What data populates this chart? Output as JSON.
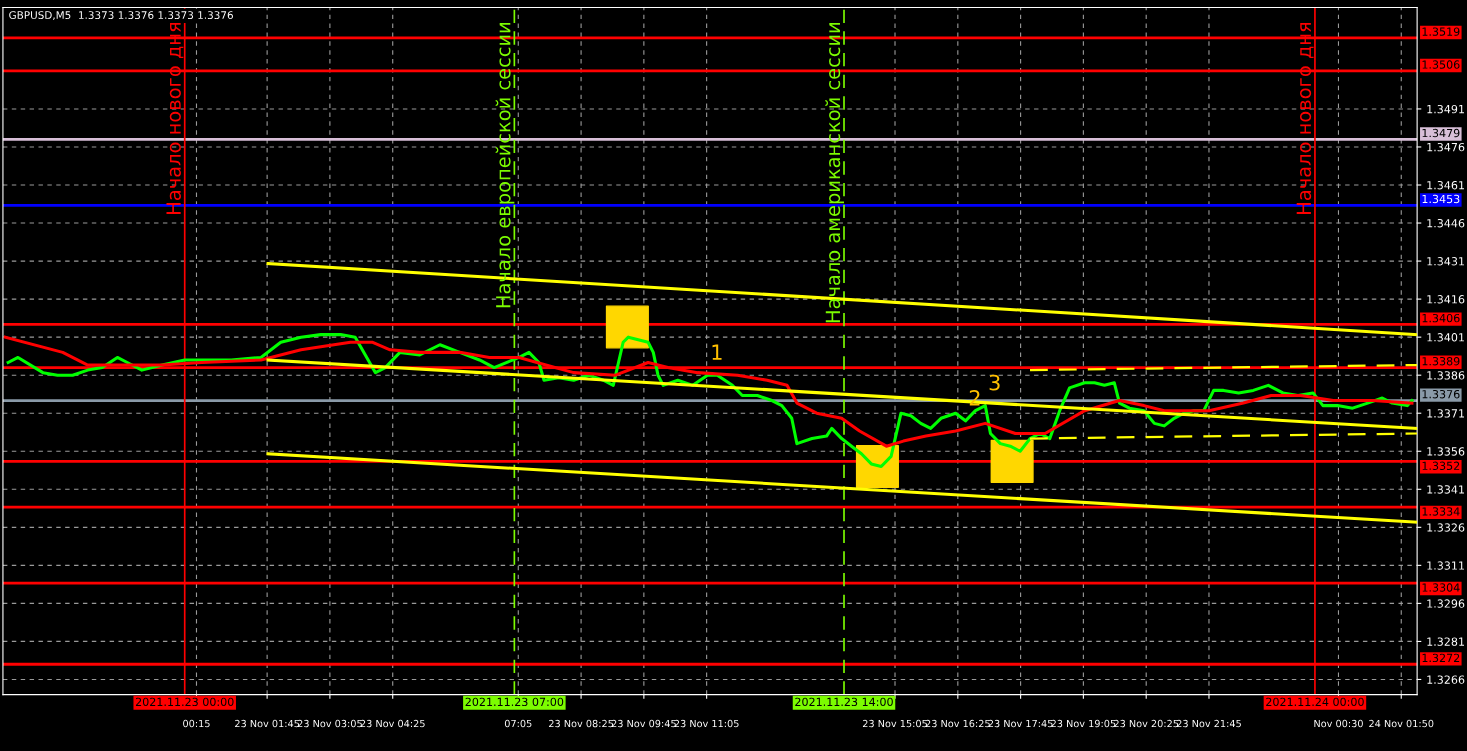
{
  "chart_data": {
    "type": "line",
    "title": "GBPUSD,M5  1.3373 1.3376 1.3373 1.3376",
    "xlim": [
      -3.86,
      26.17
    ],
    "ylim": [
      1.326,
      1.3531
    ],
    "xticks": [
      {
        "value": 0.25,
        "label": "00:15"
      },
      {
        "value": 1.75,
        "label": "23 Nov 01:45"
      },
      {
        "value": 3.083,
        "label": "23 Nov 03:05"
      },
      {
        "value": 4.417,
        "label": "23 Nov 04:25"
      },
      {
        "value": 7.083,
        "label": "07:05"
      },
      {
        "value": 8.417,
        "label": "23 Nov 08:25"
      },
      {
        "value": 9.75,
        "label": "23 Nov 09:45"
      },
      {
        "value": 11.083,
        "label": "23 Nov 11:05"
      },
      {
        "value": 15.083,
        "label": "23 Nov 15:05"
      },
      {
        "value": 16.417,
        "label": "23 Nov 16:25"
      },
      {
        "value": 17.75,
        "label": "23 Nov 17:45"
      },
      {
        "value": 19.083,
        "label": "23 Nov 19:05"
      },
      {
        "value": 20.417,
        "label": "23 Nov 20:25"
      },
      {
        "value": 21.75,
        "label": "23 Nov 21:45"
      },
      {
        "value": 24.5,
        "label": "Nov 00:30"
      },
      {
        "value": 25.833,
        "label": "24 Nov 01:50"
      }
    ],
    "yticks": [
      1.3266,
      1.3281,
      1.3296,
      1.3311,
      1.3326,
      1.3341,
      1.3356,
      1.3371,
      1.3386,
      1.3401,
      1.3416,
      1.3431,
      1.3446,
      1.3461,
      1.3476,
      1.3491
    ],
    "grid": true,
    "series": [
      {
        "color": "#00ff00",
        "x": [
          -3.75,
          -3.54,
          -3.01,
          -2.7,
          -2.38,
          -2.06,
          -1.75,
          -1.43,
          -1.22,
          -0.91,
          -0.48,
          0,
          0.36,
          0.99,
          1.62,
          2.04,
          2.47,
          2.89,
          3.31,
          3.62,
          4.05,
          4.26,
          4.57,
          4.99,
          5.42,
          5.84,
          6.26,
          6.57,
          7.1,
          7.31,
          7.52,
          7.63,
          7.94,
          8.26,
          8.58,
          8.89,
          9.1,
          9.31,
          9.42,
          9.63,
          9.84,
          9.95,
          10.05,
          10.16,
          10.47,
          10.79,
          11.1,
          11.31,
          11.63,
          11.84,
          12.16,
          12.47,
          12.68,
          12.89,
          13.0,
          13.32,
          13.63,
          13.74,
          13.95,
          14.16,
          14.37,
          14.58,
          14.79,
          15.0,
          15.21,
          15.42,
          15.63,
          15.84,
          16.06,
          16.37,
          16.58,
          16.79,
          17.0,
          17.11,
          17.32,
          17.53,
          17.74,
          17.95,
          18.16,
          18.37,
          18.58,
          18.79,
          19.11,
          19.32,
          19.53,
          19.74,
          19.85,
          20.06,
          20.37,
          20.59,
          20.8,
          21.01,
          21.22,
          21.43,
          21.64,
          21.85,
          22.06,
          22.38,
          22.69,
          23.01,
          23.32,
          23.64,
          23.96,
          24.17,
          24.48,
          24.8,
          25.12,
          25.43,
          25.64,
          25.96,
          26.06
        ],
        "values": [
          1.3391,
          1.3393,
          1.3387,
          1.3386,
          1.3386,
          1.3388,
          1.3389,
          1.3393,
          1.3391,
          1.3388,
          1.339,
          1.3392,
          1.3392,
          1.3392,
          1.3393,
          1.3399,
          1.3401,
          1.3402,
          1.3402,
          1.3401,
          1.3387,
          1.3389,
          1.3395,
          1.3394,
          1.3398,
          1.3395,
          1.3392,
          1.3389,
          1.3393,
          1.3395,
          1.3391,
          1.3384,
          1.3385,
          1.3384,
          1.3386,
          1.3384,
          1.3382,
          1.3399,
          1.3401,
          1.34,
          1.3399,
          1.3395,
          1.3386,
          1.3382,
          1.3384,
          1.3382,
          1.3386,
          1.3386,
          1.3382,
          1.3378,
          1.3378,
          1.3376,
          1.3374,
          1.3369,
          1.3359,
          1.3361,
          1.3362,
          1.3365,
          1.3361,
          1.3358,
          1.3355,
          1.3351,
          1.335,
          1.3354,
          1.3371,
          1.337,
          1.3367,
          1.3365,
          1.3369,
          1.3371,
          1.3368,
          1.3372,
          1.3374,
          1.3363,
          1.3359,
          1.3358,
          1.3356,
          1.3361,
          1.3363,
          1.3361,
          1.3372,
          1.3381,
          1.3383,
          1.3383,
          1.3382,
          1.3383,
          1.3375,
          1.3373,
          1.3372,
          1.3367,
          1.3366,
          1.3369,
          1.3371,
          1.3372,
          1.3372,
          1.338,
          1.338,
          1.3379,
          1.338,
          1.3382,
          1.3379,
          1.3378,
          1.3379,
          1.3374,
          1.3374,
          1.3373,
          1.3375,
          1.3377,
          1.3375,
          1.3374,
          1.3376
        ]
      },
      {
        "color": "#ff0000",
        "x": [
          -3.81,
          -2.59,
          -2.06,
          -1.12,
          -0.48,
          0.36,
          1.62,
          2.47,
          3.52,
          3.98,
          4.36,
          4.99,
          5.84,
          6.47,
          7.1,
          7.67,
          8.26,
          9.15,
          9.84,
          10.26,
          10.89,
          11.74,
          12.37,
          12.79,
          13.0,
          13.42,
          13.95,
          14.33,
          14.9,
          15.26,
          15.74,
          16.37,
          17.0,
          17.64,
          18.27,
          19.11,
          19.85,
          20.37,
          20.8,
          21.75,
          22.48,
          23.07,
          23.7,
          24.39,
          25.22,
          26.06
        ],
        "values": [
          1.3401,
          1.3395,
          1.339,
          1.339,
          1.339,
          1.3391,
          1.3392,
          1.3396,
          1.3399,
          1.3399,
          1.3396,
          1.3395,
          1.3395,
          1.3393,
          1.3393,
          1.339,
          1.3387,
          1.3386,
          1.3391,
          1.3389,
          1.3387,
          1.3386,
          1.3384,
          1.3382,
          1.3375,
          1.3371,
          1.3369,
          1.3364,
          1.3358,
          1.336,
          1.3362,
          1.3364,
          1.3367,
          1.3363,
          1.3363,
          1.3372,
          1.3376,
          1.3374,
          1.3372,
          1.3372,
          1.3375,
          1.3378,
          1.3378,
          1.3376,
          1.3376,
          1.3375
        ]
      },
      {
        "type": "line",
        "color": "#ffff00",
        "x": [
          1.77,
          26.17
        ],
        "values": [
          1.343,
          1.3402
        ]
      },
      {
        "type": "line",
        "color": "#ffff00",
        "x": [
          1.77,
          26.17
        ],
        "values": [
          1.3392,
          1.3365
        ]
      },
      {
        "type": "line",
        "color": "#ffff00",
        "x": [
          1.77,
          26.17
        ],
        "values": [
          1.3355,
          1.3328
        ]
      },
      {
        "type": "line",
        "color": "#ffff00",
        "line_style": "dashed",
        "x": [
          17.95,
          26.17
        ],
        "values": [
          1.3388,
          1.339
        ]
      },
      {
        "type": "line",
        "color": "#ffff00",
        "line_style": "dashed",
        "x": [
          17.95,
          26.17
        ],
        "values": [
          1.3361,
          1.3363
        ]
      },
      {
        "type": "scatter",
        "color": "#ffd700",
        "marker": "square",
        "x": [
          9.4,
          14.71,
          17.57
        ],
        "values": [
          1.3405,
          1.335,
          1.3352
        ]
      }
    ],
    "ref_lines": [
      {
        "axis": "y",
        "value": 1.3519,
        "label": "1.3519",
        "color": "#ff0000"
      },
      {
        "axis": "y",
        "value": 1.3506,
        "label": "1.3506",
        "color": "#ff0000"
      },
      {
        "axis": "y",
        "value": 1.3479,
        "label": "1.3479",
        "color": "#d8bfd8"
      },
      {
        "axis": "y",
        "value": 1.3453,
        "label": "1.3453",
        "color": "#0000ff"
      },
      {
        "axis": "y",
        "value": 1.3406,
        "label": "1.3406",
        "color": "#ff0000"
      },
      {
        "axis": "y",
        "value": 1.3389,
        "label": "1.3389",
        "color": "#ff0000"
      },
      {
        "axis": "y",
        "value": 1.3376,
        "label": "1.3376",
        "color": "#8a9aa8"
      },
      {
        "axis": "y",
        "value": 1.3352,
        "label": "1.3352",
        "color": "#ff0000"
      },
      {
        "axis": "y",
        "value": 1.3334,
        "label": "1.3334",
        "color": "#ff0000"
      },
      {
        "axis": "y",
        "value": 1.3304,
        "label": "1.3304",
        "color": "#ff0000"
      },
      {
        "axis": "y",
        "value": 1.3272,
        "label": "1.3272",
        "color": "#ff0000"
      },
      {
        "axis": "x",
        "value": 0,
        "label": "Начало нового дня",
        "color": "#ff0000"
      },
      {
        "axis": "x",
        "value": 7,
        "label": "Начало европейской сессии",
        "color": "#7cfc00",
        "line_style": "dashed"
      },
      {
        "axis": "x",
        "value": 14,
        "label": "Начало американской сессии",
        "color": "#7cfc00",
        "line_style": "dashed"
      },
      {
        "axis": "x",
        "value": 24,
        "label": "Начало нового дня",
        "color": "#ff0000"
      }
    ],
    "annotations": [
      {
        "text": "1",
        "x": 11.1,
        "y": 1.3386
      },
      {
        "text": "2",
        "x": 16.58,
        "y": 1.3368
      },
      {
        "text": "3",
        "x": 17.0,
        "y": 1.3374
      },
      {
        "text": "2021.11.23 00:00",
        "x": 0,
        "y": 1.326
      },
      {
        "text": "2021.11.23 07:00",
        "x": 7,
        "y": 1.326
      },
      {
        "text": "2021.11.23 14:00",
        "x": 14,
        "y": 1.326
      },
      {
        "text": "2021.11.24 00:00",
        "x": 24,
        "y": 1.326
      }
    ]
  }
}
